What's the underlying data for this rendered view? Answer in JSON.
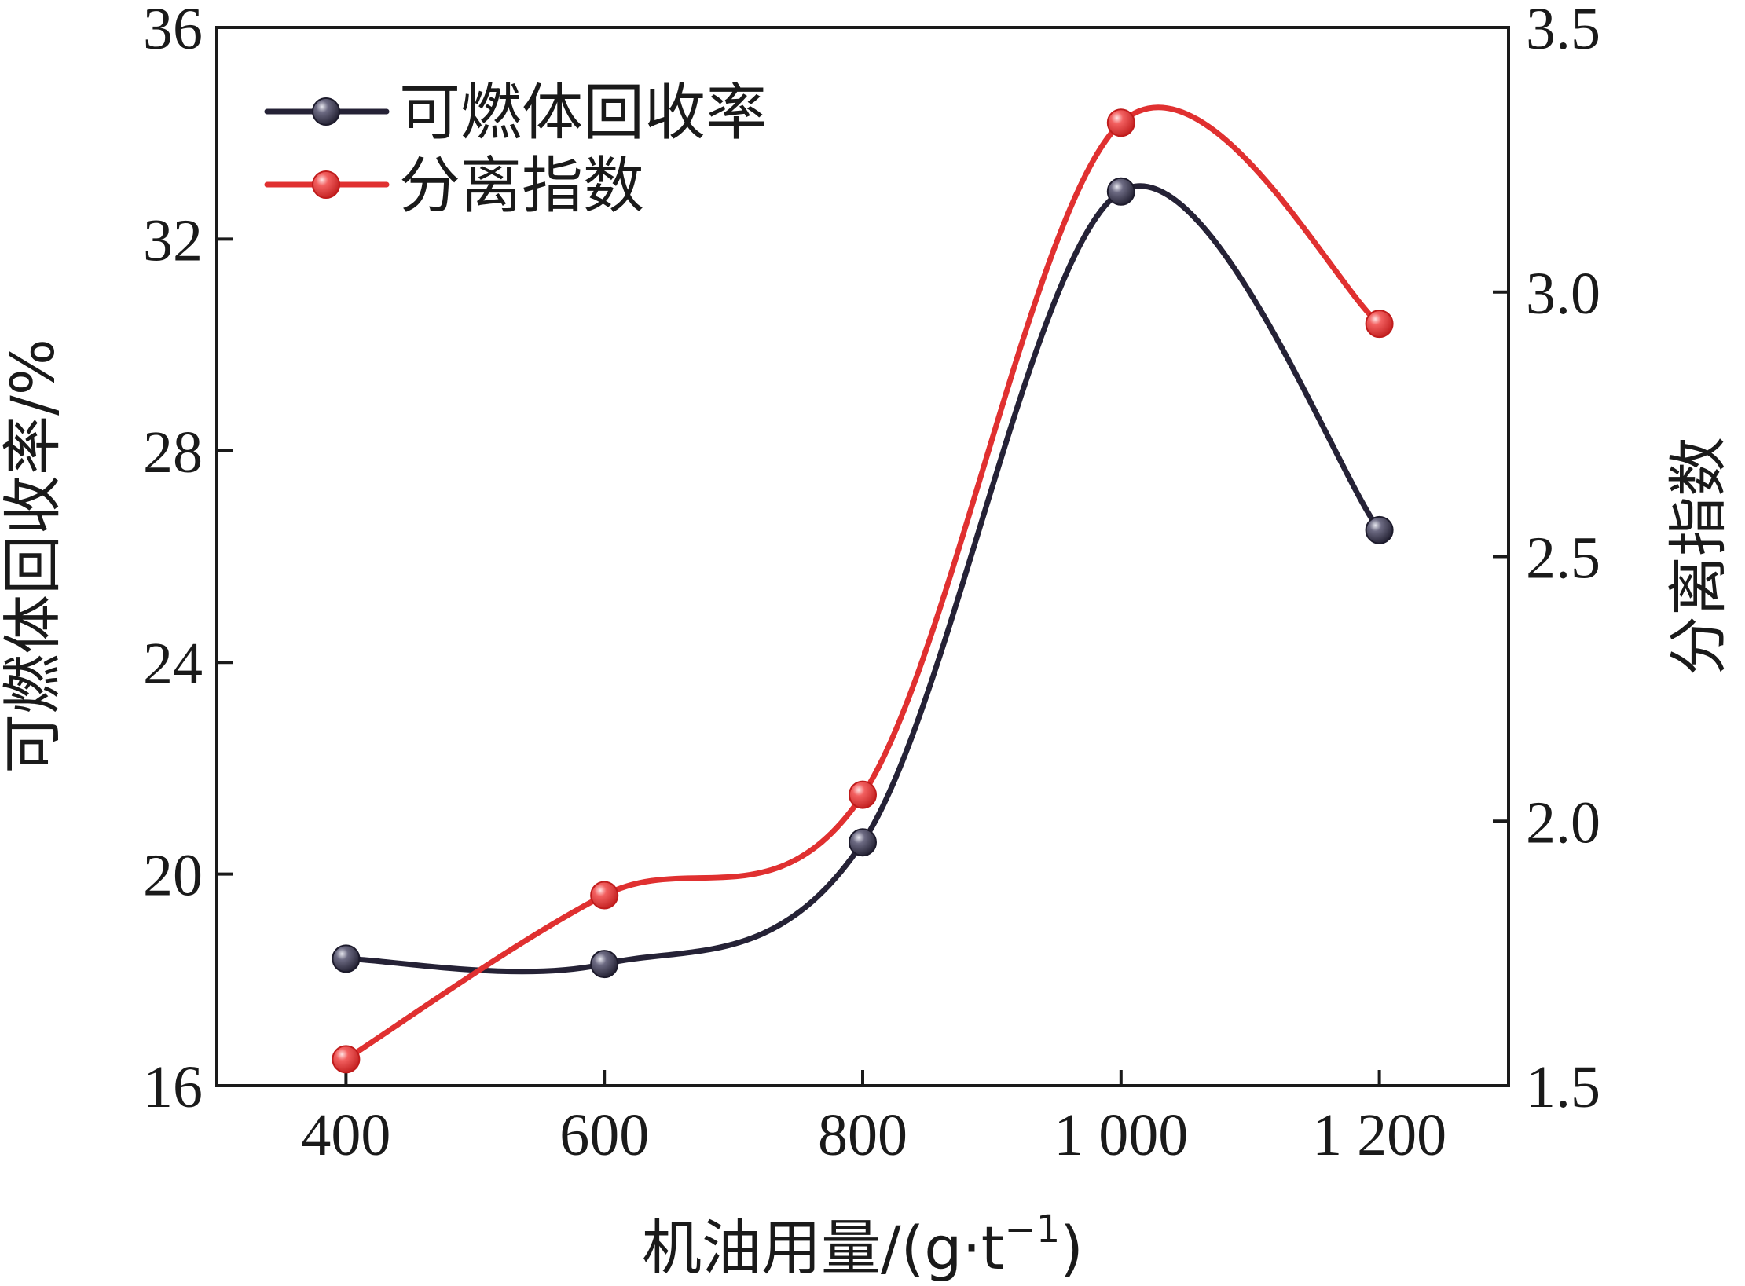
{
  "chart_data": {
    "type": "line",
    "x": [
      400,
      600,
      800,
      1000,
      1200
    ],
    "x_tick_labels": [
      "400",
      "600",
      "800",
      "1 000",
      "1 200"
    ],
    "xlim": [
      300,
      1300
    ],
    "xlabel_main": "机油用量/(g·t",
    "xlabel_sup": "−1",
    "xlabel_close": ")",
    "ylabel_left": "可燃体回收率/%",
    "ylabel_right": "分离指数",
    "ylim_left": [
      16,
      36
    ],
    "ylim_right": [
      1.5,
      3.5
    ],
    "yticks_left": [
      "16",
      "20",
      "24",
      "28",
      "32",
      "36"
    ],
    "yticks_right": [
      "1.5",
      "2.0",
      "2.5",
      "3.0",
      "3.5"
    ],
    "grid": false,
    "legend_position": "top-left",
    "series": [
      {
        "name": "可燃体回收率",
        "axis": "left",
        "color": "#252236",
        "values": [
          18.4,
          18.3,
          20.6,
          32.9,
          26.5
        ]
      },
      {
        "name": "分离指数",
        "axis": "right",
        "color": "#e03030",
        "values": [
          1.55,
          1.86,
          2.05,
          3.32,
          2.94
        ]
      }
    ]
  }
}
